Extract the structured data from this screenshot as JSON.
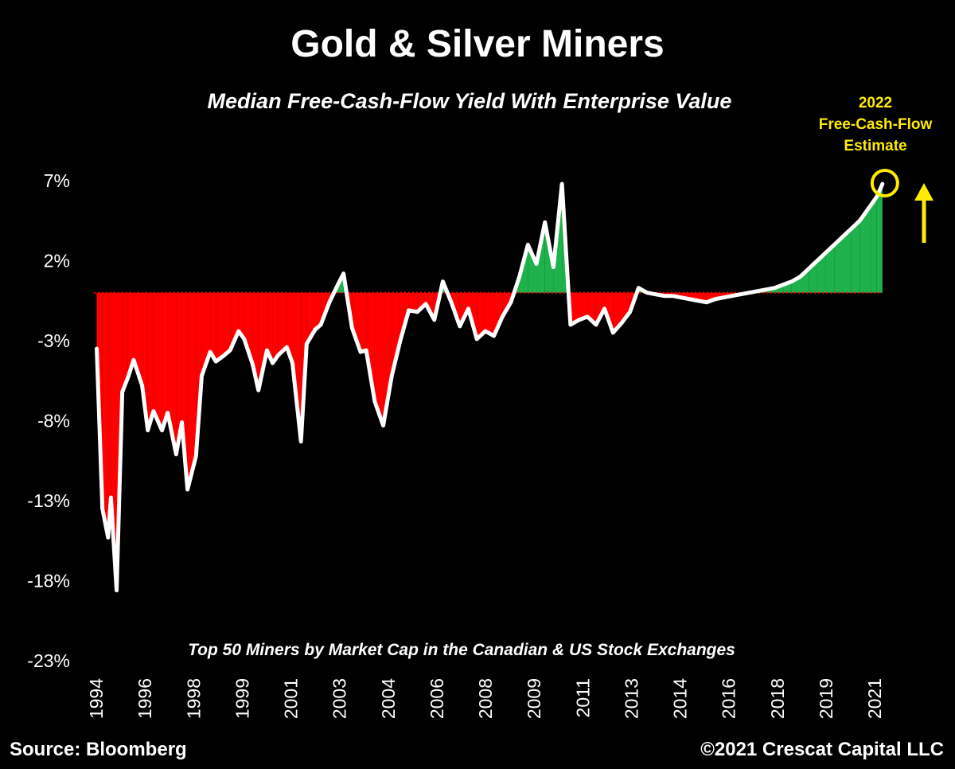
{
  "header": {
    "title": "Gold & Silver Miners",
    "subtitle": "Median Free-Cash-Flow Yield With Enterprise Value"
  },
  "annotation": {
    "estimate_label_lines": [
      "2022",
      "Free-Cash-Flow",
      "Estimate"
    ],
    "highlight_color": "#ffeb00"
  },
  "footnote": "Top 50 Miners by Market Cap in the Canadian & US Stock Exchanges",
  "footer": {
    "source": "Source: Bloomberg",
    "copyright": "©2021 Crescat Capital LLC"
  },
  "chart_data": {
    "type": "area",
    "colors": {
      "line": "#ffffff",
      "negative_fill": "#ff0000",
      "positive_fill": "#1fb14c",
      "background": "#000000"
    },
    "grid": false,
    "y_ticks": [
      7,
      2,
      -3,
      -8,
      -13,
      -18,
      -23
    ],
    "y_tick_labels": [
      "7%",
      "2%",
      "-3%",
      "-8%",
      "-13%",
      "-18%",
      "-23%"
    ],
    "x_tick_labels": [
      "1994",
      "1996",
      "1998",
      "1999",
      "2001",
      "2003",
      "2004",
      "2006",
      "2008",
      "2009",
      "2011",
      "2013",
      "2014",
      "2016",
      "2018",
      "2019",
      "2021"
    ],
    "ylim": [
      -23,
      7
    ],
    "xlim": [
      1994.0,
      2022.0
    ],
    "series": [
      {
        "x": [
          1994.1,
          1994.3,
          1994.5,
          1994.6,
          1994.8,
          1995.0,
          1995.2,
          1995.4,
          1995.7,
          1995.9,
          1996.1,
          1996.4,
          1996.6,
          1996.9,
          1997.1,
          1997.3,
          1997.6,
          1997.8,
          1998.1,
          1998.3,
          1998.6,
          1998.8,
          1999.1,
          1999.3,
          1999.6,
          1999.8,
          2000.1,
          2000.3,
          2000.5,
          2000.8,
          2001.0,
          2001.3,
          2001.5,
          2001.8,
          2002.0,
          2002.3,
          2002.6,
          2002.8,
          2003.1,
          2003.4,
          2003.6,
          2003.9,
          2004.2,
          2004.5,
          2004.8,
          2005.1,
          2005.4,
          2005.7,
          2006.0,
          2006.3,
          2006.6,
          2006.9,
          2007.2,
          2007.5,
          2007.8,
          2008.1,
          2008.4,
          2008.7,
          2009.0,
          2009.3,
          2009.6,
          2009.9,
          2010.2,
          2010.5,
          2010.8,
          2011.1,
          2011.4,
          2011.7,
          2012.0,
          2012.3,
          2012.6,
          2012.9,
          2013.2,
          2013.5,
          2013.8,
          2014.1,
          2014.4,
          2014.7,
          2015.0,
          2015.3,
          2015.6,
          2015.9,
          2016.2,
          2016.5,
          2016.8,
          2017.1,
          2017.4,
          2017.7,
          2018.0,
          2018.3,
          2018.6,
          2018.9,
          2019.2,
          2019.5,
          2019.8,
          2020.1,
          2020.4,
          2020.7,
          2021.0,
          2021.2,
          2021.4,
          2021.6,
          2021.8
        ],
        "y": [
          -3.5,
          -13.5,
          -15.3,
          -12.8,
          -18.6,
          -6.2,
          -5.3,
          -4.2,
          -5.8,
          -8.6,
          -7.4,
          -8.6,
          -7.5,
          -10.1,
          -8.1,
          -12.3,
          -10.2,
          -5.2,
          -3.7,
          -4.3,
          -3.9,
          -3.6,
          -2.4,
          -2.9,
          -4.5,
          -6.1,
          -3.6,
          -4.4,
          -3.9,
          -3.4,
          -4.4,
          -9.3,
          -3.2,
          -2.3,
          -2.0,
          -0.6,
          0.5,
          1.2,
          -2.2,
          -3.7,
          -3.6,
          -6.8,
          -8.3,
          -5.2,
          -3.0,
          -1.1,
          -1.2,
          -0.7,
          -1.7,
          0.7,
          -0.6,
          -2.1,
          -1.0,
          -2.9,
          -2.4,
          -2.7,
          -1.5,
          -0.6,
          1.0,
          3.0,
          1.8,
          4.4,
          1.6,
          6.8,
          -2.0,
          -1.7,
          -1.5,
          -2.0,
          -1.0,
          -2.5,
          -1.9,
          -1.2,
          0.3,
          0.0,
          -0.1,
          -0.2,
          -0.2,
          -0.3,
          -0.4,
          -0.5,
          -0.6,
          -0.4,
          -0.3,
          -0.2,
          -0.1,
          0.0,
          0.1,
          0.2,
          0.3,
          0.5,
          0.7,
          1.0,
          1.5,
          2.0,
          2.5,
          3.0,
          3.5,
          4.0,
          4.5,
          5.0,
          5.5,
          6.0,
          6.8
        ]
      }
    ]
  }
}
